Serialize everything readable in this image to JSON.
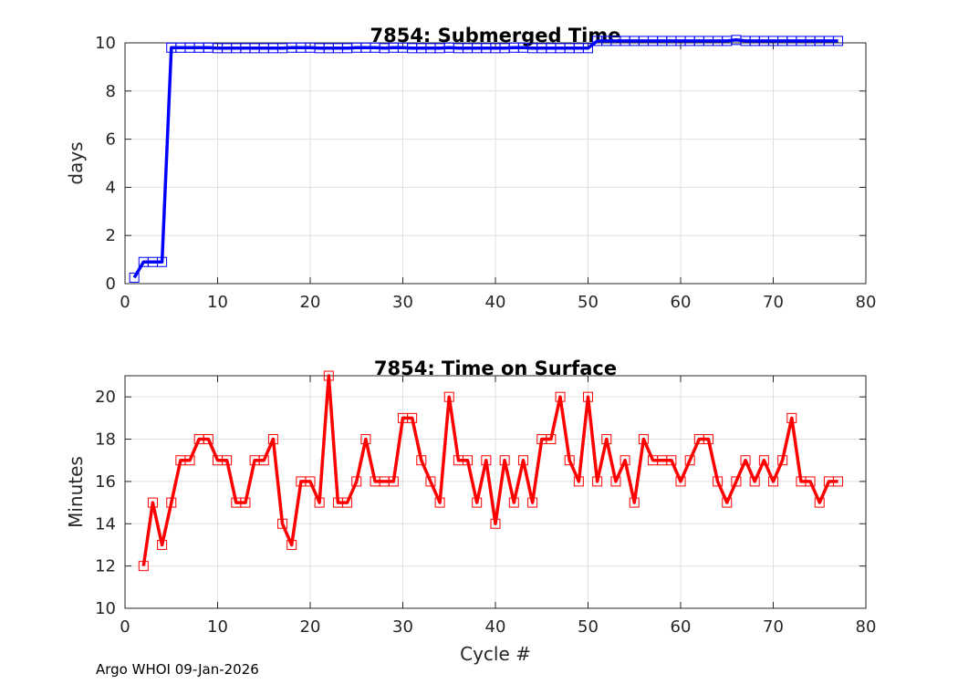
{
  "chart_data": [
    {
      "type": "line",
      "title": "7854: Submerged Time",
      "xlabel": "",
      "ylabel": "days",
      "xlim": [
        0,
        80
      ],
      "ylim": [
        0,
        10
      ],
      "xticks": [
        0,
        10,
        20,
        30,
        40,
        50,
        60,
        70,
        80
      ],
      "yticks": [
        0,
        2,
        4,
        6,
        8,
        10
      ],
      "grid": true,
      "color": "#0000ff",
      "series": [
        {
          "name": "Submerged Time",
          "x": [
            1,
            2,
            3,
            4,
            5,
            6,
            7,
            8,
            9,
            10,
            11,
            12,
            13,
            14,
            15,
            16,
            17,
            18,
            19,
            20,
            21,
            22,
            23,
            24,
            25,
            26,
            27,
            28,
            29,
            30,
            31,
            32,
            33,
            34,
            35,
            36,
            37,
            38,
            39,
            40,
            41,
            42,
            43,
            44,
            45,
            46,
            47,
            48,
            49,
            50,
            51,
            52,
            53,
            54,
            55,
            56,
            57,
            58,
            59,
            60,
            61,
            62,
            63,
            64,
            65,
            66,
            67,
            68,
            69,
            70,
            71,
            72,
            73,
            74,
            75,
            76,
            77
          ],
          "y": [
            0.25,
            0.9,
            0.9,
            0.9,
            9.8,
            9.8,
            9.8,
            9.8,
            9.8,
            9.78,
            9.78,
            9.78,
            9.78,
            9.78,
            9.78,
            9.78,
            9.78,
            9.8,
            9.8,
            9.8,
            9.78,
            9.78,
            9.78,
            9.78,
            9.8,
            9.8,
            9.8,
            9.78,
            9.8,
            9.8,
            9.78,
            9.78,
            9.78,
            9.78,
            9.8,
            9.78,
            9.78,
            9.78,
            9.78,
            9.78,
            9.78,
            9.8,
            9.8,
            9.78,
            9.78,
            9.78,
            9.78,
            9.78,
            9.78,
            9.78,
            10.08,
            10.08,
            10.08,
            10.08,
            10.08,
            10.08,
            10.08,
            10.08,
            10.08,
            10.08,
            10.08,
            10.08,
            10.08,
            10.08,
            10.08,
            10.12,
            10.08,
            10.08,
            10.08,
            10.08,
            10.08,
            10.08,
            10.08,
            10.08,
            10.08,
            10.08,
            10.08
          ]
        }
      ]
    },
    {
      "type": "line",
      "title": "7854: Time on Surface",
      "xlabel": "Cycle #",
      "ylabel": "Minutes",
      "xlim": [
        0,
        80
      ],
      "ylim": [
        10,
        21
      ],
      "xticks": [
        0,
        10,
        20,
        30,
        40,
        50,
        60,
        70,
        80
      ],
      "yticks": [
        10,
        12,
        14,
        16,
        18,
        20
      ],
      "grid": true,
      "color": "#ff0000",
      "series": [
        {
          "name": "Time on Surface",
          "x": [
            2,
            3,
            4,
            5,
            6,
            7,
            8,
            9,
            10,
            11,
            12,
            13,
            14,
            15,
            16,
            17,
            18,
            19,
            20,
            21,
            22,
            23,
            24,
            25,
            26,
            27,
            28,
            29,
            30,
            31,
            32,
            33,
            34,
            35,
            36,
            37,
            38,
            39,
            40,
            41,
            42,
            43,
            44,
            45,
            46,
            47,
            48,
            49,
            50,
            51,
            52,
            53,
            54,
            55,
            56,
            57,
            58,
            59,
            60,
            61,
            62,
            63,
            64,
            65,
            66,
            67,
            68,
            69,
            70,
            71,
            72,
            73,
            74,
            75,
            76,
            77
          ],
          "y": [
            12,
            15,
            13,
            15,
            17,
            17,
            18,
            18,
            17,
            17,
            15,
            15,
            17,
            17,
            18,
            14,
            13,
            16,
            16,
            15,
            21,
            15,
            15,
            16,
            18,
            16,
            16,
            16,
            19,
            19,
            17,
            16,
            15,
            20,
            17,
            17,
            15,
            17,
            14,
            17,
            15,
            17,
            15,
            18,
            18,
            20,
            17,
            16,
            20,
            16,
            18,
            16,
            17,
            15,
            18,
            17,
            17,
            17,
            16,
            17,
            18,
            18,
            16,
            15,
            16,
            17,
            16,
            17,
            16,
            17,
            19,
            16,
            16,
            15,
            16,
            16
          ]
        }
      ]
    }
  ],
  "footer": "Argo WHOI 09-Jan-2026"
}
